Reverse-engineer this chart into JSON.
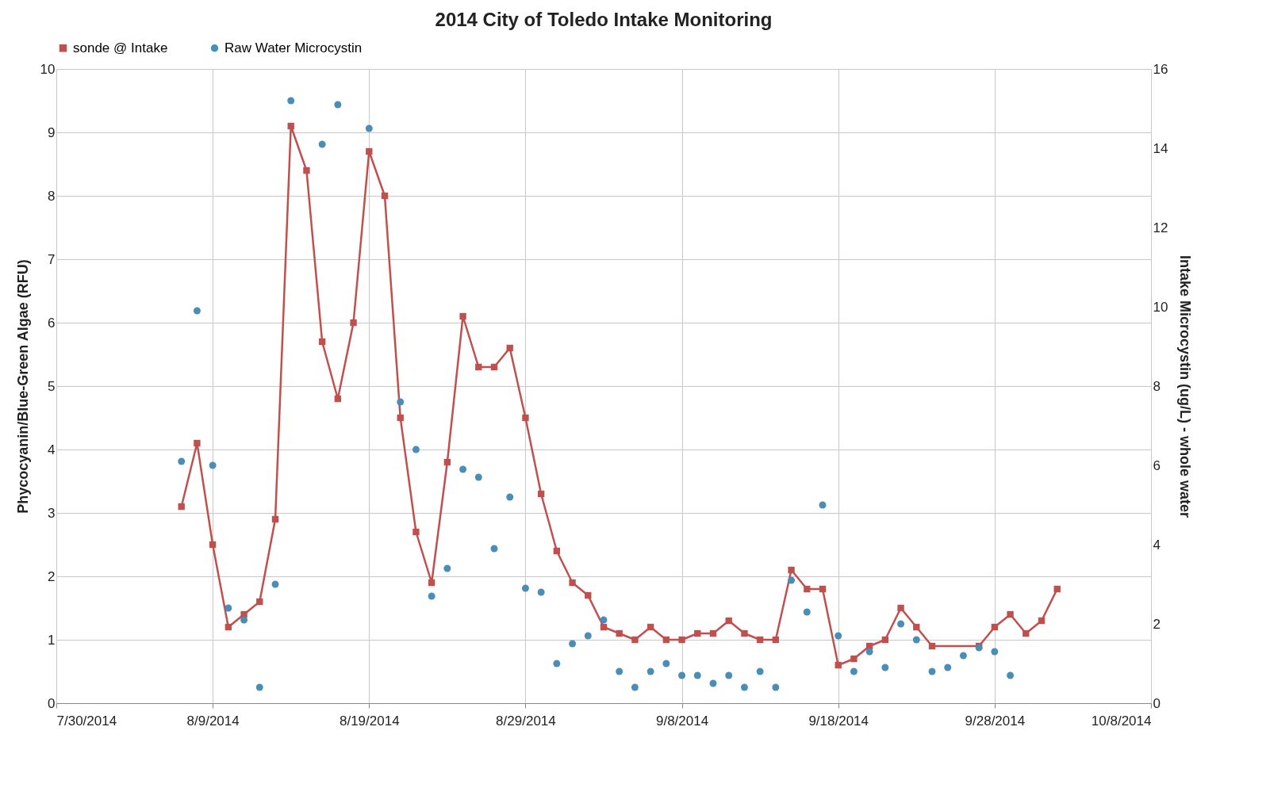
{
  "chart_data": {
    "type": "line",
    "title": "2014 City of Toledo Intake Monitoring",
    "ylabel": "Phycocyanin/Blue-Green Algae (RFU)",
    "y2label": "Intake Microcystin (ug/L) - whole water",
    "xlim": [
      "2014-07-30",
      "2014-10-08"
    ],
    "xticks": [
      {
        "value": "2014-07-30",
        "label": "7/30/2014"
      },
      {
        "value": "2014-08-09",
        "label": "8/9/2014"
      },
      {
        "value": "2014-08-19",
        "label": "8/19/2014"
      },
      {
        "value": "2014-08-29",
        "label": "8/29/2014"
      },
      {
        "value": "2014-09-08",
        "label": "9/8/2014"
      },
      {
        "value": "2014-09-18",
        "label": "9/18/2014"
      },
      {
        "value": "2014-09-28",
        "label": "9/28/2014"
      },
      {
        "value": "2014-10-08",
        "label": "10/8/2014"
      }
    ],
    "ylim": [
      0,
      10
    ],
    "yticks": [
      0,
      1,
      2,
      3,
      4,
      5,
      6,
      7,
      8,
      9,
      10
    ],
    "y2lim": [
      0,
      16
    ],
    "y2ticks": [
      0,
      2,
      4,
      6,
      8,
      10,
      12,
      14,
      16
    ],
    "grid": true,
    "legend": "top",
    "line_style": "solid",
    "series": [
      {
        "name": "sonde @ Intake",
        "type": "line",
        "marker": "square",
        "color": "#c0504d",
        "x": [
          "2014-08-07",
          "2014-08-08",
          "2014-08-09",
          "2014-08-10",
          "2014-08-11",
          "2014-08-12",
          "2014-08-13",
          "2014-08-14",
          "2014-08-15",
          "2014-08-16",
          "2014-08-17",
          "2014-08-18",
          "2014-08-19",
          "2014-08-20",
          "2014-08-21",
          "2014-08-22",
          "2014-08-23",
          "2014-08-24",
          "2014-08-25",
          "2014-08-26",
          "2014-08-27",
          "2014-08-28",
          "2014-08-29",
          "2014-08-30",
          "2014-08-31",
          "2014-09-01",
          "2014-09-02",
          "2014-09-03",
          "2014-09-04",
          "2014-09-05",
          "2014-09-06",
          "2014-09-07",
          "2014-09-08",
          "2014-09-09",
          "2014-09-10",
          "2014-09-11",
          "2014-09-12",
          "2014-09-13",
          "2014-09-14",
          "2014-09-15",
          "2014-09-16",
          "2014-09-17",
          "2014-09-18",
          "2014-09-19",
          "2014-09-20",
          "2014-09-21",
          "2014-09-22",
          "2014-09-23",
          "2014-09-24",
          "2014-09-27",
          "2014-09-28",
          "2014-09-29",
          "2014-09-30",
          "2014-10-01",
          "2014-10-02"
        ],
        "values": [
          3.1,
          4.1,
          2.5,
          1.2,
          1.4,
          1.6,
          2.9,
          9.1,
          8.4,
          5.7,
          4.8,
          6.0,
          8.7,
          8.0,
          4.5,
          2.7,
          1.9,
          3.8,
          6.1,
          5.3,
          5.3,
          5.6,
          4.5,
          3.3,
          2.4,
          1.9,
          1.7,
          1.2,
          1.1,
          1.0,
          1.2,
          1.0,
          1.0,
          1.1,
          1.1,
          1.3,
          1.1,
          1.0,
          1.0,
          2.1,
          1.8,
          1.8,
          0.6,
          0.7,
          0.9,
          1.0,
          1.5,
          1.2,
          0.9,
          0.9,
          1.2,
          1.4,
          1.1,
          1.3,
          1.8
        ]
      },
      {
        "name": "Raw Water Microcystin",
        "type": "scatter",
        "marker": "circle",
        "axis": "y2",
        "color": "#4a8db7",
        "x": [
          "2014-08-07",
          "2014-08-08",
          "2014-08-09",
          "2014-08-10",
          "2014-08-11",
          "2014-08-12",
          "2014-08-13",
          "2014-08-14",
          "2014-08-16",
          "2014-08-17",
          "2014-08-19",
          "2014-08-21",
          "2014-08-22",
          "2014-08-23",
          "2014-08-24",
          "2014-08-25",
          "2014-08-26",
          "2014-08-27",
          "2014-08-28",
          "2014-08-29",
          "2014-08-30",
          "2014-08-31",
          "2014-09-01",
          "2014-09-02",
          "2014-09-03",
          "2014-09-04",
          "2014-09-05",
          "2014-09-06",
          "2014-09-07",
          "2014-09-08",
          "2014-09-09",
          "2014-09-10",
          "2014-09-11",
          "2014-09-12",
          "2014-09-13",
          "2014-09-14",
          "2014-09-15",
          "2014-09-16",
          "2014-09-17",
          "2014-09-18",
          "2014-09-19",
          "2014-09-20",
          "2014-09-21",
          "2014-09-22",
          "2014-09-23",
          "2014-09-24",
          "2014-09-25",
          "2014-09-26",
          "2014-09-27",
          "2014-09-28",
          "2014-09-29"
        ],
        "values": [
          6.1,
          9.9,
          6.0,
          2.4,
          2.1,
          0.4,
          3.0,
          15.2,
          14.1,
          15.1,
          14.5,
          7.6,
          6.4,
          2.7,
          3.4,
          5.9,
          5.7,
          3.9,
          5.2,
          2.9,
          2.8,
          1.0,
          1.5,
          1.7,
          2.1,
          0.8,
          0.4,
          0.8,
          1.0,
          0.7,
          0.7,
          0.5,
          0.7,
          0.4,
          0.8,
          0.4,
          3.1,
          2.3,
          5.0,
          1.7,
          0.8,
          1.3,
          0.9,
          2.0,
          1.6,
          0.8,
          0.9,
          1.2,
          1.4,
          1.3,
          0.7
        ]
      }
    ]
  }
}
